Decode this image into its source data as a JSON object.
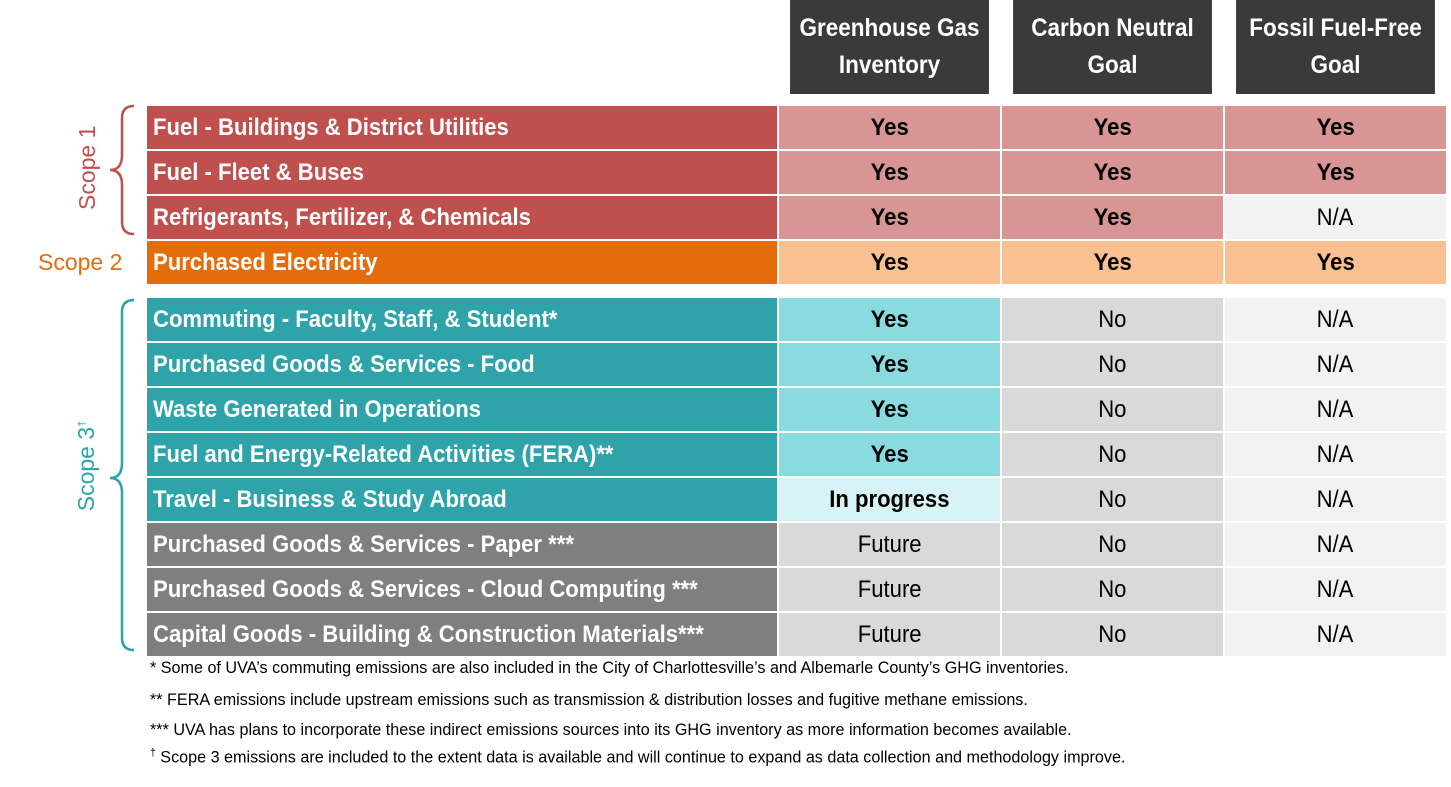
{
  "columns": [
    {
      "line1": "Greenhouse Gas",
      "line2": "Inventory"
    },
    {
      "line1": "Carbon Neutral",
      "line2": "Goal"
    },
    {
      "line1": "Fossil Fuel-Free",
      "line2": "Goal"
    }
  ],
  "scopes": {
    "scope1": "Scope 1",
    "scope2": "Scope 2",
    "scope3": "Scope 3",
    "scope3_mark": "†"
  },
  "rows": [
    {
      "label": "Fuel - Buildings & District Utilities",
      "v": [
        "Yes",
        "Yes",
        "Yes"
      ]
    },
    {
      "label": "Fuel - Fleet & Buses",
      "v": [
        "Yes",
        "Yes",
        "Yes"
      ]
    },
    {
      "label": "Refrigerants, Fertilizer, & Chemicals",
      "v": [
        "Yes",
        "Yes",
        "N/A"
      ]
    },
    {
      "label": "Purchased Electricity",
      "v": [
        "Yes",
        "Yes",
        "Yes"
      ]
    },
    {
      "label": "Commuting - Faculty, Staff, & Student*",
      "v": [
        "Yes",
        "No",
        "N/A"
      ]
    },
    {
      "label": "Purchased Goods & Services - Food",
      "v": [
        "Yes",
        "No",
        "N/A"
      ]
    },
    {
      "label": "Waste Generated in Operations",
      "v": [
        "Yes",
        "No",
        "N/A"
      ]
    },
    {
      "label": "Fuel and Energy-Related Activities (FERA)**",
      "v": [
        "Yes",
        "No",
        "N/A"
      ]
    },
    {
      "label": "Travel - Business & Study Abroad",
      "v": [
        "In progress",
        "No",
        "N/A"
      ]
    },
    {
      "label": "Purchased Goods & Services - Paper ***",
      "v": [
        "Future",
        "No",
        "N/A"
      ]
    },
    {
      "label": "Purchased Goods & Services - Cloud Computing ***",
      "v": [
        "Future",
        "No",
        "N/A"
      ]
    },
    {
      "label": "Capital Goods - Building & Construction Materials***",
      "v": [
        "Future",
        "No",
        "N/A"
      ]
    }
  ],
  "footnotes": {
    "f1": "* Some of UVA’s commuting emissions are also included in the City of Charlottesville’s and Albemarle County’s GHG inventories.",
    "f2": "** FERA emissions include upstream emissions such as transmission & distribution losses and fugitive methane emissions.",
    "f3": "*** UVA has plans to incorporate these indirect emissions sources into its GHG inventory as more information becomes available.",
    "f4_mark": "†",
    "f4": " Scope 3 emissions are included to the extent data is available and will continue to expand as data collection and methodology improve."
  },
  "colors": {
    "scope1_label": "#c0504d",
    "scope1_cell": "#d99594",
    "scope2_label": "#e46c0a",
    "scope2_cell": "#fac090",
    "scope3_label": "#2ea3a9",
    "scope3_cell": "#8adbe0",
    "scope3_progress": "#d8f3f5",
    "future_label": "#7f7f7f",
    "gray_cell": "#d9d9d9",
    "na_cell": "#f2f2f2",
    "header_bg": "#3a3a3a"
  }
}
